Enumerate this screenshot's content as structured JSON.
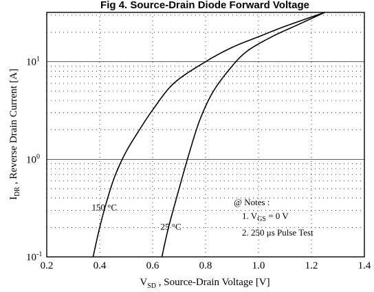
{
  "chart_data": {
    "type": "line",
    "title": "Fig 4.  Source-Drain Diode Forward Voltage",
    "xlabel": {
      "main": "V",
      "sub": "SD",
      "rest": " ,  Source-Drain Voltage    [V]"
    },
    "ylabel": {
      "main": "I",
      "sub": "DR",
      "rest": " ,  Reverse Drain Current    [A]"
    },
    "xlim": [
      0.2,
      1.4
    ],
    "ylim": [
      0.1,
      32
    ],
    "y_scale": "log",
    "x_ticks": [
      {
        "value": 0.2,
        "label": "0.2"
      },
      {
        "value": 0.4,
        "label": "0.4"
      },
      {
        "value": 0.6,
        "label": "0.6"
      },
      {
        "value": 0.8,
        "label": "0.8"
      },
      {
        "value": 1.0,
        "label": "1.0"
      },
      {
        "value": 1.2,
        "label": "1.2"
      },
      {
        "value": 1.4,
        "label": "1.4"
      }
    ],
    "y_ticks": [
      {
        "value": 0.1,
        "base": "10",
        "exp": "-1"
      },
      {
        "value": 1,
        "base": "10",
        "exp": "0"
      },
      {
        "value": 10,
        "base": "10",
        "exp": "1"
      }
    ],
    "grid": "dotted",
    "series": [
      {
        "name": "150 °C",
        "label_at": [
          0.37,
          0.3
        ],
        "x": [
          0.375,
          0.4,
          0.43,
          0.46,
          0.5,
          0.55,
          0.6,
          0.68,
          0.8,
          0.9,
          1.0,
          1.1,
          1.25
        ],
        "y": [
          0.1,
          0.2,
          0.4,
          0.7,
          1.2,
          2.0,
          3.2,
          6.0,
          10.0,
          14.0,
          18.0,
          23.0,
          32.0
        ]
      },
      {
        "name": "25 °C",
        "label_at": [
          0.63,
          0.19
        ],
        "x": [
          0.635,
          0.66,
          0.7,
          0.74,
          0.78,
          0.83,
          0.9,
          0.96,
          1.05,
          1.15,
          1.25
        ],
        "y": [
          0.1,
          0.2,
          0.5,
          1.2,
          2.6,
          5.0,
          9.0,
          13.0,
          18.0,
          24.0,
          32.0
        ]
      }
    ],
    "notes": {
      "header": "@ Notes :",
      "line1": {
        "prefix": "1.  V",
        "sub": "GS",
        "suffix": " = 0 V"
      },
      "line2": "2.  250 μs Pulse Test"
    }
  }
}
